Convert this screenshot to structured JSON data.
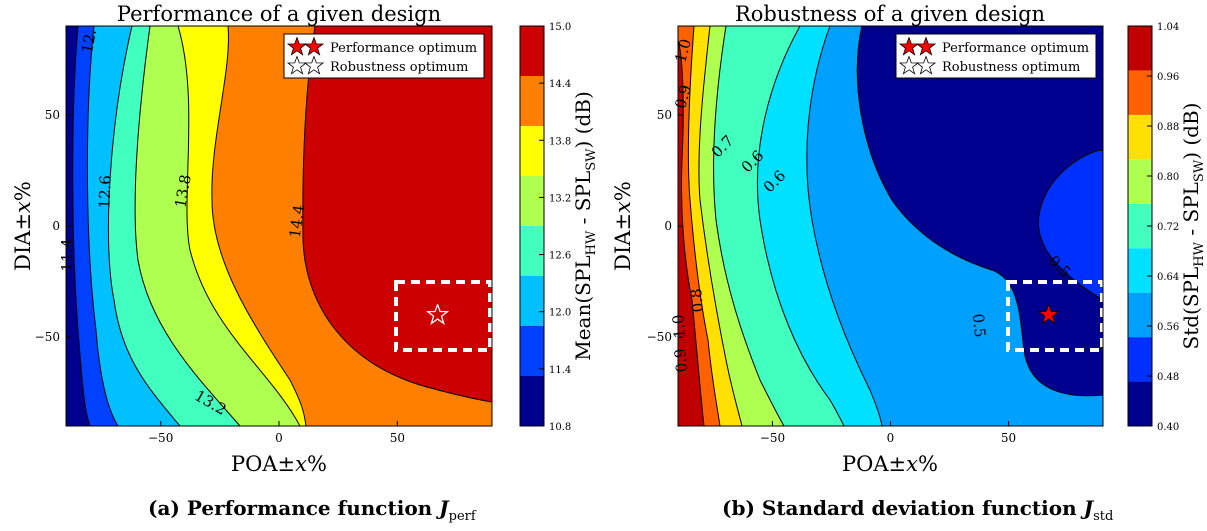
{
  "chart_data": [
    {
      "type": "contour",
      "title": "Performance of a given design",
      "xlabel": "POA±x%",
      "ylabel": "DIA±x%",
      "xlim": [
        -90,
        90
      ],
      "ylim": [
        -90,
        90
      ],
      "xticks": [
        "−50",
        "0",
        "50"
      ],
      "yticks": [
        "50",
        "0",
        "−50"
      ],
      "colorbar": {
        "label": "Mean(SPL_HW - SPL_SW) (dB)",
        "min": 10.8,
        "max": 15.0,
        "ticks": [
          "15.0",
          "14.4",
          "13.8",
          "13.2",
          "12.6",
          "12.0",
          "11.4",
          "10.8"
        ],
        "colors": [
          "#00008f",
          "#0040ff",
          "#00c0ff",
          "#40ffbf",
          "#afff50",
          "#ffff00",
          "#ff8000",
          "#cc0000"
        ]
      },
      "contour_labels": [
        "12.",
        "12.6",
        "13.8",
        "14.4",
        "11.4",
        "13.2"
      ],
      "legend": {
        "position": "top-right",
        "entries": [
          {
            "label": "Performance optimum",
            "marker": "filled-red-star"
          },
          {
            "label": "Robustness optimum",
            "marker": "hollow-star"
          }
        ]
      },
      "markers": [
        {
          "name": "Robustness optimum",
          "x": 67,
          "y": -40,
          "style": "hollow-star"
        }
      ],
      "region": {
        "x": [
          50,
          90
        ],
        "y": [
          -55,
          -25
        ],
        "style": "white-dashed"
      },
      "caption": {
        "prefix": "(a) Performance function ",
        "symbol": "J",
        "sub": "perf"
      }
    },
    {
      "type": "contour",
      "title": "Robustness of a given design",
      "xlabel": "POA±x%",
      "ylabel": "DIA±x%",
      "xlim": [
        -90,
        90
      ],
      "ylim": [
        -90,
        90
      ],
      "xticks": [
        "−50",
        "0",
        "50"
      ],
      "yticks": [
        "50",
        "0",
        "−50"
      ],
      "colorbar": {
        "label": "Std(SPL_HW - SPL_SW) (dB)",
        "min": 0.4,
        "max": 1.04,
        "ticks": [
          "1.04",
          "0.96",
          "0.88",
          "0.80",
          "0.72",
          "0.64",
          "0.56",
          "0.48",
          "0.40"
        ],
        "colors": [
          "#00008f",
          "#0030ff",
          "#00a0ff",
          "#00e0ff",
          "#40ffbf",
          "#afff50",
          "#ffe000",
          "#ff6000",
          "#c00000"
        ]
      },
      "contour_labels": [
        "1.0",
        "0.9",
        "0.7",
        "0.6",
        "0.6",
        "0.5",
        "0.8",
        "0.5",
        "1.0",
        "0.9"
      ],
      "legend": {
        "position": "top-right",
        "entries": [
          {
            "label": "Performance optimum",
            "marker": "filled-red-star"
          },
          {
            "label": "Robustness optimum",
            "marker": "hollow-star"
          }
        ]
      },
      "markers": [
        {
          "name": "Performance optimum",
          "x": 67,
          "y": -40,
          "style": "filled-red-star"
        }
      ],
      "region": {
        "x": [
          50,
          90
        ],
        "y": [
          -55,
          -25
        ],
        "style": "white-dashed"
      },
      "caption": {
        "prefix": "(b) Standard deviation function ",
        "symbol": "J",
        "sub": "std"
      }
    }
  ]
}
